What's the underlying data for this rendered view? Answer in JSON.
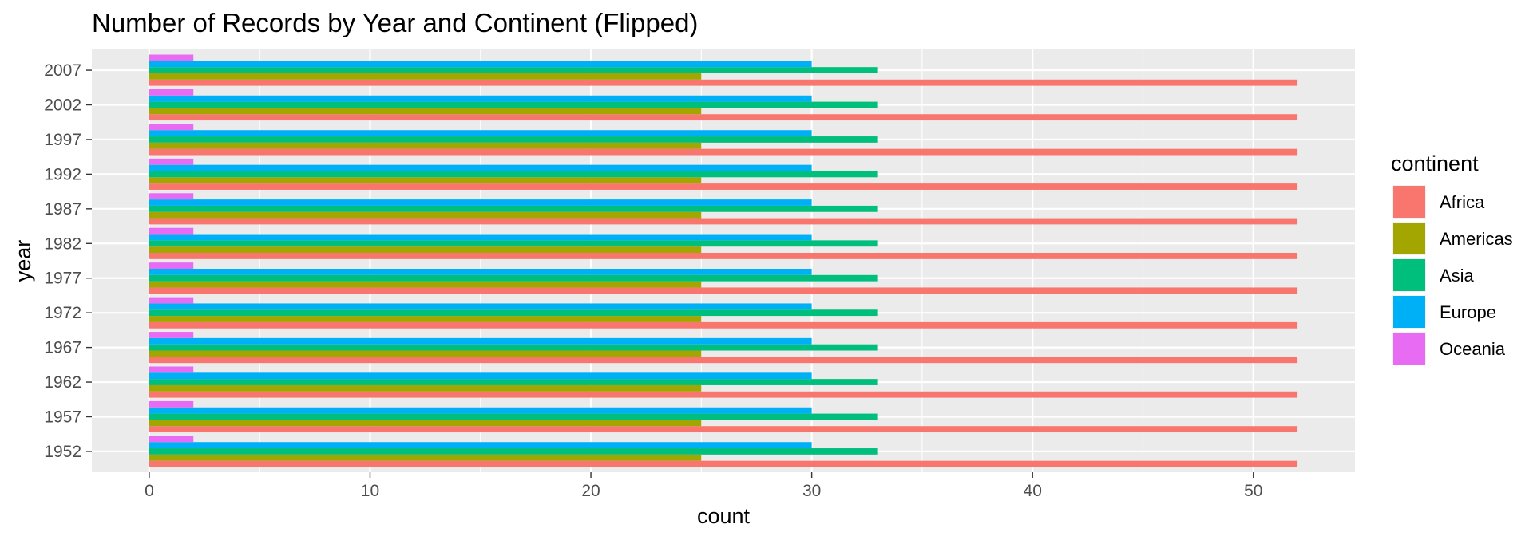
{
  "chart_data": {
    "type": "bar",
    "orientation": "horizontal",
    "title": "Number of Records by Year and Continent (Flipped)",
    "xlabel": "count",
    "ylabel": "year",
    "xlim": [
      -2.6,
      54.6
    ],
    "x_ticks": [
      0,
      10,
      20,
      30,
      40,
      50
    ],
    "grid": true,
    "legend_position": "right",
    "categories": [
      "1952",
      "1957",
      "1962",
      "1967",
      "1972",
      "1977",
      "1982",
      "1987",
      "1992",
      "1997",
      "2002",
      "2007"
    ],
    "series": [
      {
        "name": "Africa",
        "color": "#F8766D",
        "values": [
          52,
          52,
          52,
          52,
          52,
          52,
          52,
          52,
          52,
          52,
          52,
          52
        ]
      },
      {
        "name": "Americas",
        "color": "#A3A500",
        "values": [
          25,
          25,
          25,
          25,
          25,
          25,
          25,
          25,
          25,
          25,
          25,
          25
        ]
      },
      {
        "name": "Asia",
        "color": "#00BF7D",
        "values": [
          33,
          33,
          33,
          33,
          33,
          33,
          33,
          33,
          33,
          33,
          33,
          33
        ]
      },
      {
        "name": "Europe",
        "color": "#00B0F6",
        "values": [
          30,
          30,
          30,
          30,
          30,
          30,
          30,
          30,
          30,
          30,
          30,
          30
        ]
      },
      {
        "name": "Oceania",
        "color": "#E76BF3",
        "values": [
          2,
          2,
          2,
          2,
          2,
          2,
          2,
          2,
          2,
          2,
          2,
          2
        ]
      }
    ],
    "legend": {
      "title": "continent",
      "entries": [
        "Africa",
        "Americas",
        "Asia",
        "Europe",
        "Oceania"
      ]
    }
  }
}
